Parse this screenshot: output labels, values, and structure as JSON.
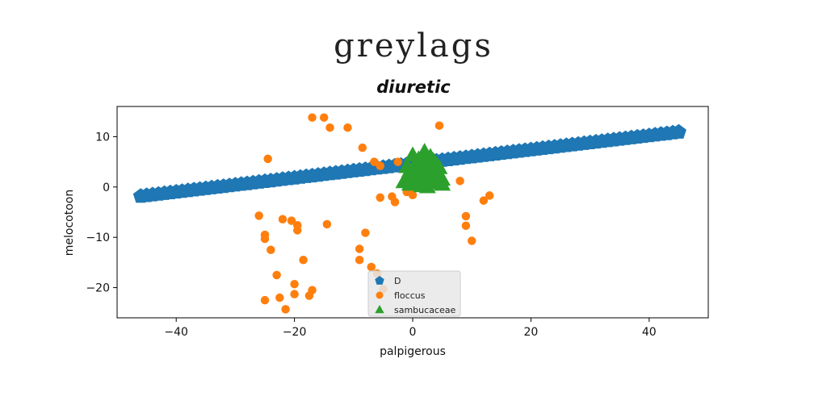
{
  "page_title": "greylags",
  "chart_data": {
    "type": "scatter",
    "title": "diuretic",
    "xlabel": "palpigerous",
    "ylabel": "melocotoon",
    "xlim": [
      -50,
      50
    ],
    "ylim": [
      -26,
      16
    ],
    "xticks": [
      -40,
      -20,
      0,
      20,
      40
    ],
    "yticks": [
      -20,
      -10,
      0,
      10
    ],
    "grid": false,
    "legend_placement": "bottom-center",
    "series": [
      {
        "name": "D",
        "marker": "pentagon",
        "color": "#1f77b4",
        "x": [
          -46,
          -45,
          -44,
          -43,
          -42,
          -41,
          -40,
          -39,
          -38,
          -37,
          -36,
          -35,
          -34,
          -33,
          -32,
          -31,
          -30,
          -29,
          -28,
          -27,
          -26,
          -25,
          -24,
          -23,
          -22,
          -21,
          -20,
          -19,
          -18,
          -17,
          -16,
          -15,
          -14,
          -13,
          -12,
          -11,
          -10,
          -9,
          -8,
          -7,
          -6,
          -5,
          -4,
          -3,
          -2,
          -1,
          0,
          1,
          2,
          3,
          4,
          5,
          6,
          7,
          8,
          9,
          10,
          11,
          12,
          13,
          14,
          15,
          16,
          17,
          18,
          19,
          20,
          21,
          22,
          23,
          24,
          25,
          26,
          27,
          28,
          29,
          30,
          31,
          32,
          33,
          34,
          35,
          36,
          37,
          38,
          39,
          40,
          41,
          42,
          43,
          44,
          45
        ],
        "y": [
          -1.84,
          -1.7,
          -1.56,
          -1.42,
          -1.28,
          -1.14,
          -1.0,
          -0.86,
          -0.72,
          -0.58,
          -0.44,
          -0.3,
          -0.16,
          -0.02,
          0.12,
          0.26,
          0.4,
          0.54,
          0.68,
          0.82,
          0.96,
          1.1,
          1.24,
          1.38,
          1.52,
          1.66,
          1.8,
          1.94,
          2.08,
          2.22,
          2.36,
          2.5,
          2.64,
          2.78,
          2.92,
          3.06,
          3.2,
          3.34,
          3.48,
          3.62,
          3.76,
          3.9,
          4.04,
          4.18,
          4.32,
          4.46,
          4.6,
          4.74,
          4.88,
          5.02,
          5.16,
          5.3,
          5.44,
          5.58,
          5.72,
          5.86,
          6.0,
          6.14,
          6.28,
          6.42,
          6.56,
          6.7,
          6.84,
          6.98,
          7.12,
          7.26,
          7.4,
          7.54,
          7.68,
          7.82,
          7.96,
          8.1,
          8.24,
          8.38,
          8.52,
          8.66,
          8.8,
          8.94,
          9.08,
          9.22,
          9.36,
          9.5,
          9.64,
          9.78,
          9.92,
          10.06,
          10.2,
          10.34,
          10.48,
          10.62,
          10.76,
          10.9
        ]
      },
      {
        "name": "floccus",
        "marker": "circle",
        "color": "#ff7f0e",
        "x": [
          -17,
          -15,
          -14,
          -11,
          -8.5,
          -6.5,
          -5.5,
          -2.5,
          4.5,
          -24.5,
          -26,
          -25,
          -25,
          -24,
          -23,
          -22,
          -20.5,
          -19.5,
          -19.5,
          -18.5,
          -17.5,
          -17,
          -14.5,
          -9,
          -9,
          -8,
          -7,
          -6,
          -5,
          -3,
          -1,
          8,
          9,
          9,
          10,
          12,
          13,
          -22.5,
          -20,
          -20,
          -21.5,
          -25,
          0,
          0,
          1.5,
          -3.5,
          -5.5
        ],
        "y": [
          13.8,
          13.8,
          11.8,
          11.8,
          7.8,
          5,
          4.2,
          5,
          12.2,
          5.6,
          -5.7,
          -9.5,
          -10.3,
          -12.5,
          -17.5,
          -6.4,
          -6.7,
          -7.6,
          -8.6,
          -14.5,
          -21.6,
          -20.5,
          -7.4,
          -12.3,
          -14.5,
          -9.1,
          -15.9,
          -17.2,
          -20.3,
          -3.0,
          -1.0,
          1.2,
          -5.8,
          -7.7,
          -10.7,
          -2.7,
          -1.7,
          -22.0,
          -21.3,
          -19.3,
          -24.3,
          -22.5,
          -1.6,
          -0.3,
          0.2,
          -1.9,
          -2.1
        ]
      },
      {
        "name": "sambucaceae",
        "marker": "triangle",
        "color": "#2ca02c",
        "x": [
          -1.5,
          -1,
          -0.5,
          0,
          0.5,
          1,
          1.5,
          2,
          2.5,
          3,
          3.5,
          4,
          4.5,
          5,
          -1,
          0,
          1,
          2,
          3,
          4,
          5,
          -0.5,
          0.5,
          1.5,
          2.5,
          3.5,
          4.5,
          0,
          1,
          2,
          3,
          4,
          1,
          2,
          3,
          2
        ],
        "y": [
          1,
          2,
          0.5,
          3,
          1.5,
          4,
          2.5,
          5,
          0,
          3.5,
          1,
          4.5,
          2,
          0.5,
          4,
          1,
          5.5,
          2,
          6,
          3,
          1.5,
          3.2,
          2.2,
          0.2,
          4.2,
          5.2,
          3.8,
          6.3,
          1.2,
          3.6,
          2.8,
          0.8,
          5,
          7,
          4.5,
          5.8
        ]
      }
    ]
  }
}
